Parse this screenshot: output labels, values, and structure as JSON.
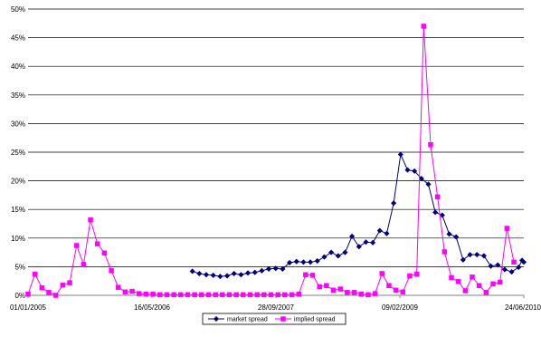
{
  "chart_data": {
    "type": "line",
    "title": "",
    "xlabel": "",
    "ylabel": "",
    "xlim": [
      "2005-01-01",
      "2010-06-24"
    ],
    "x_ticks": [
      "01/01/2005",
      "16/05/2006",
      "28/09/2007",
      "09/02/2009",
      "24/06/2010"
    ],
    "ylim": [
      0,
      50
    ],
    "y_ticks": [
      0,
      5,
      10,
      15,
      20,
      25,
      30,
      35,
      40,
      45,
      50
    ],
    "y_tick_labels": [
      "0%",
      "5%",
      "10%",
      "15%",
      "20%",
      "25%",
      "30%",
      "35%",
      "40%",
      "45%",
      "50%"
    ],
    "grid": "horizontal",
    "legend_position": "bottom",
    "series": [
      {
        "name": "market spread",
        "color": "#000080",
        "marker": "diamond",
        "points": [
          [
            "2006-10-26",
            4.2
          ],
          [
            "2006-11-23",
            3.8
          ],
          [
            "2006-12-21",
            3.6
          ],
          [
            "2007-01-18",
            3.5
          ],
          [
            "2007-02-15",
            3.3
          ],
          [
            "2007-03-15",
            3.4
          ],
          [
            "2007-04-12",
            3.8
          ],
          [
            "2007-05-10",
            3.6
          ],
          [
            "2007-06-07",
            3.9
          ],
          [
            "2007-07-05",
            4.0
          ],
          [
            "2007-08-02",
            4.3
          ],
          [
            "2007-08-30",
            4.6
          ],
          [
            "2007-09-27",
            4.7
          ],
          [
            "2007-10-25",
            4.6
          ],
          [
            "2007-11-22",
            5.7
          ],
          [
            "2007-12-20",
            5.9
          ],
          [
            "2008-01-17",
            5.8
          ],
          [
            "2008-02-14",
            5.8
          ],
          [
            "2008-03-13",
            6.0
          ],
          [
            "2008-04-10",
            6.7
          ],
          [
            "2008-05-08",
            7.5
          ],
          [
            "2008-06-05",
            6.9
          ],
          [
            "2008-07-03",
            7.5
          ],
          [
            "2008-07-31",
            10.3
          ],
          [
            "2008-08-28",
            8.5
          ],
          [
            "2008-09-25",
            9.3
          ],
          [
            "2008-10-23",
            9.2
          ],
          [
            "2008-11-20",
            11.3
          ],
          [
            "2008-12-18",
            10.8
          ],
          [
            "2009-01-15",
            16.1
          ],
          [
            "2009-02-12",
            24.6
          ],
          [
            "2009-03-12",
            21.9
          ],
          [
            "2009-04-09",
            21.7
          ],
          [
            "2009-05-07",
            20.4
          ],
          [
            "2009-06-04",
            19.4
          ],
          [
            "2009-07-02",
            14.5
          ],
          [
            "2009-07-30",
            14.0
          ],
          [
            "2009-08-27",
            10.7
          ],
          [
            "2009-09-24",
            10.2
          ],
          [
            "2009-10-22",
            6.2
          ],
          [
            "2009-11-19",
            7.1
          ],
          [
            "2009-12-17",
            7.1
          ],
          [
            "2010-01-14",
            6.9
          ],
          [
            "2010-02-11",
            5.1
          ],
          [
            "2010-03-11",
            5.3
          ],
          [
            "2010-04-08",
            4.5
          ],
          [
            "2010-05-06",
            4.1
          ],
          [
            "2010-06-03",
            4.9
          ],
          [
            "2010-06-17",
            6.1
          ],
          [
            "2010-06-24",
            5.8
          ]
        ]
      },
      {
        "name": "implied spread",
        "color": "#FF00FF",
        "marker": "square",
        "points": [
          [
            "2005-01-01",
            0.2
          ],
          [
            "2005-01-29",
            3.7
          ],
          [
            "2005-02-26",
            1.3
          ],
          [
            "2005-03-26",
            0.5
          ],
          [
            "2005-04-23",
            0.0
          ],
          [
            "2005-05-21",
            1.8
          ],
          [
            "2005-06-18",
            2.2
          ],
          [
            "2005-07-16",
            8.7
          ],
          [
            "2005-08-13",
            5.4
          ],
          [
            "2005-09-10",
            13.2
          ],
          [
            "2005-10-08",
            9.0
          ],
          [
            "2005-11-05",
            7.4
          ],
          [
            "2005-12-03",
            4.3
          ],
          [
            "2005-12-31",
            1.4
          ],
          [
            "2006-01-28",
            0.6
          ],
          [
            "2006-02-25",
            0.7
          ],
          [
            "2006-03-25",
            0.3
          ],
          [
            "2006-04-22",
            0.2
          ],
          [
            "2006-05-20",
            0.2
          ],
          [
            "2006-06-17",
            0.1
          ],
          [
            "2006-07-15",
            0.1
          ],
          [
            "2006-08-12",
            0.1
          ],
          [
            "2006-09-09",
            0.1
          ],
          [
            "2006-10-07",
            0.1
          ],
          [
            "2006-11-04",
            0.1
          ],
          [
            "2006-12-02",
            0.1
          ],
          [
            "2006-12-30",
            0.1
          ],
          [
            "2007-01-27",
            0.1
          ],
          [
            "2007-02-24",
            0.1
          ],
          [
            "2007-03-24",
            0.1
          ],
          [
            "2007-04-21",
            0.1
          ],
          [
            "2007-05-19",
            0.1
          ],
          [
            "2007-06-16",
            0.1
          ],
          [
            "2007-07-14",
            0.1
          ],
          [
            "2007-08-11",
            0.1
          ],
          [
            "2007-09-08",
            0.1
          ],
          [
            "2007-10-06",
            0.1
          ],
          [
            "2007-11-03",
            0.1
          ],
          [
            "2007-12-01",
            0.1
          ],
          [
            "2007-12-29",
            0.2
          ],
          [
            "2008-01-26",
            3.6
          ],
          [
            "2008-02-23",
            3.5
          ],
          [
            "2008-03-22",
            1.5
          ],
          [
            "2008-04-19",
            1.7
          ],
          [
            "2008-05-17",
            0.9
          ],
          [
            "2008-06-14",
            1.1
          ],
          [
            "2008-07-12",
            0.5
          ],
          [
            "2008-08-09",
            0.5
          ],
          [
            "2008-09-06",
            0.2
          ],
          [
            "2008-10-04",
            0.1
          ],
          [
            "2008-11-01",
            0.3
          ],
          [
            "2008-11-29",
            3.8
          ],
          [
            "2008-12-27",
            1.7
          ],
          [
            "2009-01-24",
            0.9
          ],
          [
            "2009-02-21",
            0.6
          ],
          [
            "2009-03-21",
            3.4
          ],
          [
            "2009-04-18",
            3.7
          ],
          [
            "2009-05-16",
            47.0
          ],
          [
            "2009-06-13",
            26.3
          ],
          [
            "2009-07-11",
            17.2
          ],
          [
            "2009-08-08",
            7.6
          ],
          [
            "2009-09-05",
            3.1
          ],
          [
            "2009-10-03",
            2.4
          ],
          [
            "2009-10-31",
            0.8
          ],
          [
            "2009-11-28",
            3.2
          ],
          [
            "2009-12-26",
            1.7
          ],
          [
            "2010-01-23",
            0.5
          ],
          [
            "2010-02-20",
            2.0
          ],
          [
            "2010-03-20",
            2.3
          ],
          [
            "2010-04-17",
            11.7
          ],
          [
            "2010-05-15",
            5.8
          ]
        ]
      }
    ]
  }
}
